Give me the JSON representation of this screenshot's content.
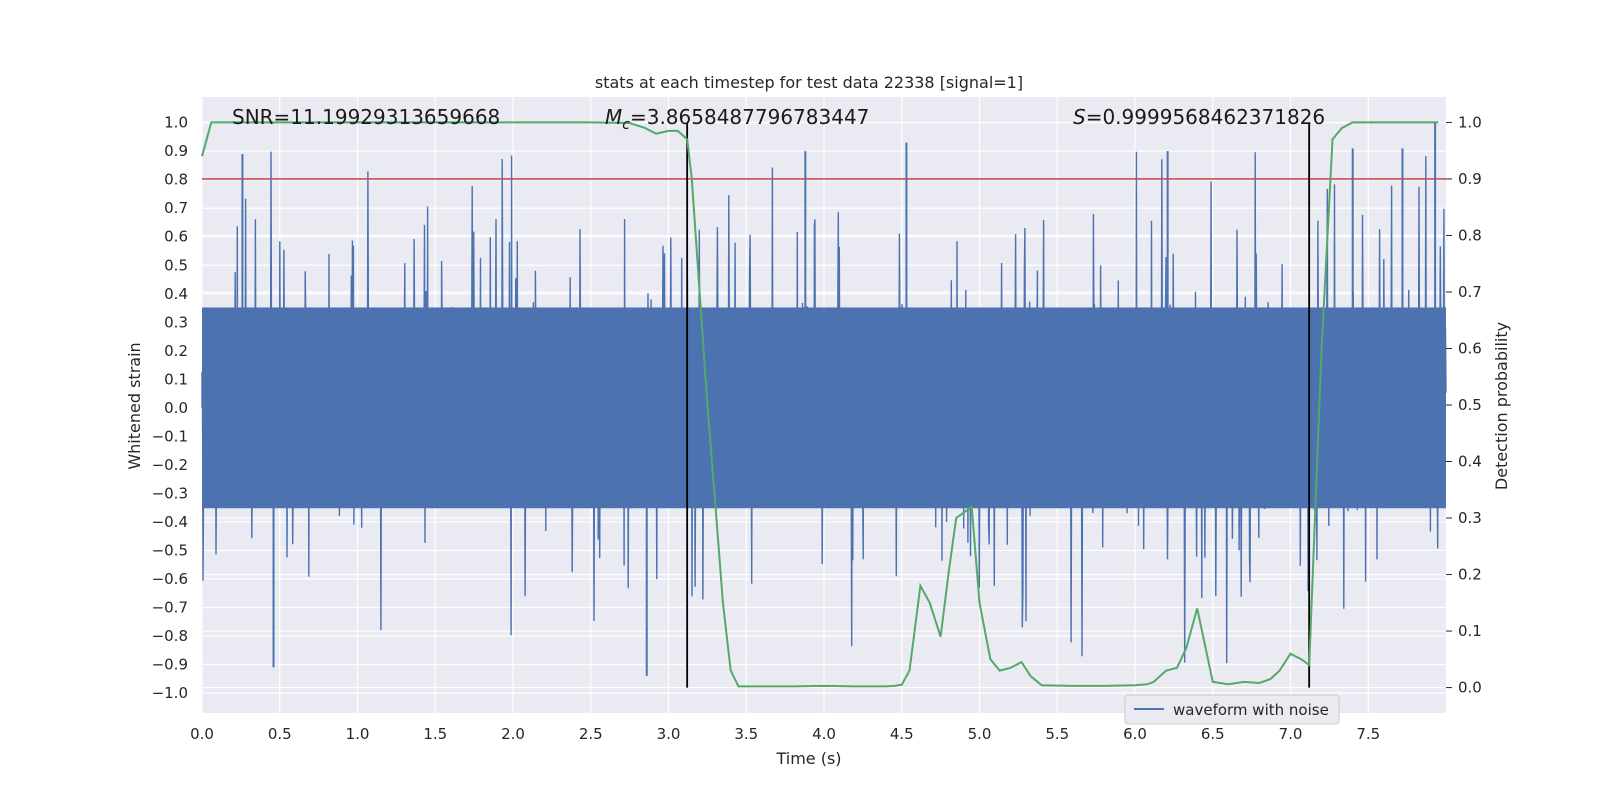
{
  "chart_data": {
    "type": "line",
    "title": "stats at each timestep for test data 22338 [signal=1]",
    "xlabel": "Time (s)",
    "ylabel_left": "Whitened strain",
    "ylabel_right": "Detection probability",
    "xlim": [
      0.0,
      8.0
    ],
    "ylim_left": [
      -1.07,
      1.09
    ],
    "ylim_right": [
      -0.045,
      1.045
    ],
    "x_ticks": [
      "0.0",
      "0.5",
      "1.0",
      "1.5",
      "2.0",
      "2.5",
      "3.0",
      "3.5",
      "4.0",
      "4.5",
      "5.0",
      "5.5",
      "6.0",
      "6.5",
      "7.0",
      "7.5"
    ],
    "y_ticks_left": [
      "1.0",
      "0.9",
      "0.8",
      "0.7",
      "0.6",
      "0.5",
      "0.4",
      "0.3",
      "0.2",
      "0.1",
      "0.0",
      "−0.1",
      "−0.2",
      "−0.3",
      "−0.4",
      "−0.5",
      "−0.6",
      "−0.7",
      "−0.8",
      "−0.9",
      "−1.0"
    ],
    "y_ticks_right": [
      "1.0",
      "0.9",
      "0.8",
      "0.7",
      "0.6",
      "0.5",
      "0.4",
      "0.3",
      "0.2",
      "0.1",
      "0.0"
    ],
    "grid": true,
    "legend": {
      "placement": "bottom-right",
      "entries": [
        "waveform with noise"
      ]
    },
    "annotations": {
      "snr": "SNR=11.19929313659668",
      "mc_symbol": "M",
      "mc_sub": "c",
      "mc_value": "=3.8658487796783447",
      "s_symbol": "S",
      "s_value": "=0.9999568462371826"
    },
    "threshold_right": 0.9,
    "vertical_markers": [
      3.12,
      7.12
    ],
    "series": [
      {
        "name": "waveform with noise",
        "axis": "left",
        "style": "dense noise",
        "color": "#4c72b0",
        "x_range": [
          0.0,
          8.0
        ],
        "core_amplitude": 0.4,
        "peak_max": 1.0,
        "peak_min": -0.94
      },
      {
        "axis": "right",
        "color": "#55a868",
        "x": [
          0.0,
          0.06,
          0.3,
          1.0,
          2.0,
          2.5,
          2.75,
          2.85,
          2.92,
          3.0,
          3.06,
          3.12,
          3.15,
          3.2,
          3.25,
          3.3,
          3.35,
          3.4,
          3.45,
          3.6,
          3.8,
          4.0,
          4.2,
          4.4,
          4.45,
          4.5,
          4.55,
          4.62,
          4.68,
          4.75,
          4.8,
          4.85,
          4.9,
          4.95,
          5.0,
          5.07,
          5.13,
          5.2,
          5.27,
          5.33,
          5.4,
          5.6,
          5.8,
          6.0,
          6.08,
          6.12,
          6.2,
          6.27,
          6.33,
          6.4,
          6.5,
          6.6,
          6.7,
          6.8,
          6.87,
          6.93,
          7.0,
          7.07,
          7.12,
          7.2,
          7.27,
          7.33,
          7.4,
          7.6,
          7.8,
          7.95
        ],
        "y": [
          0.94,
          1.0,
          1.0,
          1.0,
          1.0,
          1.0,
          0.999,
          0.99,
          0.98,
          0.985,
          0.985,
          0.97,
          0.9,
          0.7,
          0.5,
          0.33,
          0.15,
          0.03,
          0.002,
          0.002,
          0.002,
          0.003,
          0.002,
          0.002,
          0.003,
          0.005,
          0.03,
          0.18,
          0.15,
          0.09,
          0.2,
          0.3,
          0.31,
          0.32,
          0.15,
          0.05,
          0.03,
          0.035,
          0.045,
          0.02,
          0.004,
          0.003,
          0.003,
          0.004,
          0.006,
          0.01,
          0.03,
          0.035,
          0.07,
          0.14,
          0.01,
          0.006,
          0.01,
          0.008,
          0.015,
          0.03,
          0.06,
          0.05,
          0.04,
          0.6,
          0.97,
          0.99,
          1.0,
          1.0,
          1.0,
          1.0
        ]
      }
    ],
    "colors": {
      "axes_bg": "#eaeaf2",
      "grid": "#ffffff",
      "threshold": "#c44e52",
      "marker": "#000000"
    }
  }
}
